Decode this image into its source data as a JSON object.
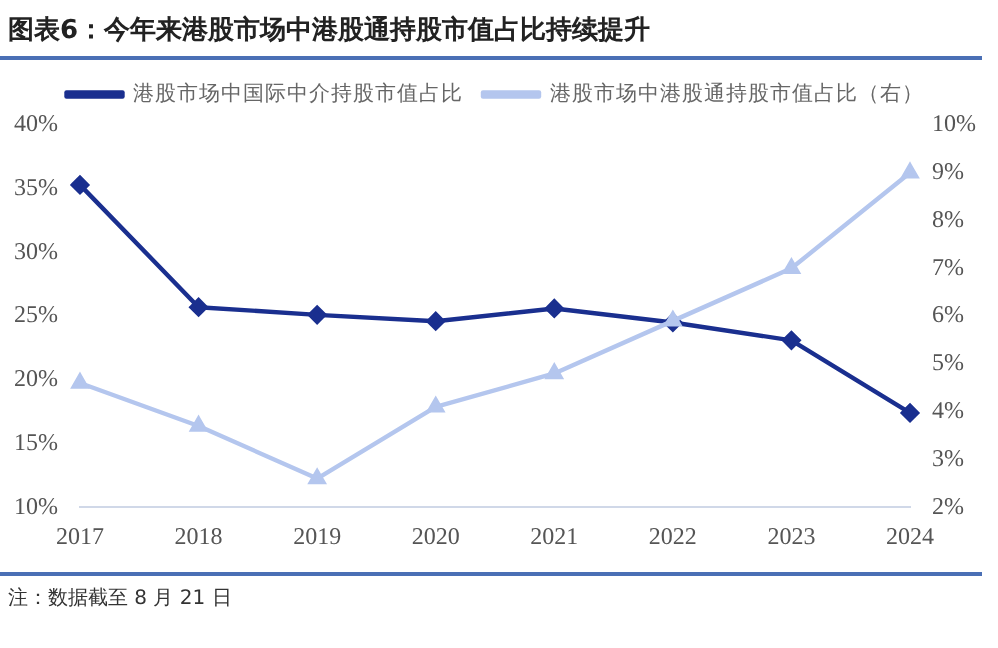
{
  "chart_data": {
    "type": "line",
    "title": "图表6：今年来港股市场中港股通持股市值占比持续提升",
    "categories": [
      "2017",
      "2018",
      "2019",
      "2020",
      "2021",
      "2022",
      "2023",
      "2024"
    ],
    "series": [
      {
        "name": "港股市场中国际中介持股市值占比",
        "color": "#1a2f8f",
        "marker": "diamond",
        "values": [
          35.3,
          25.7,
          25.1,
          24.6,
          25.6,
          24.5,
          23.1,
          17.4
        ]
      },
      {
        "name": "港股市场中港股通持股市值占比（右）",
        "color": "#b4c6ee",
        "marker": "triangle",
        "axis": "y2",
        "values": [
          4.6,
          3.7,
          2.6,
          4.1,
          4.8,
          5.9,
          7.0,
          9.0
        ]
      }
    ],
    "ylim": [
      10,
      40
    ],
    "yticks": [
      {
        "value": 10,
        "label": "10%"
      },
      {
        "value": 15,
        "label": "15%"
      },
      {
        "value": 20,
        "label": "20%"
      },
      {
        "value": 25,
        "label": "25%"
      },
      {
        "value": 30,
        "label": "30%"
      },
      {
        "value": 35,
        "label": "35%"
      },
      {
        "value": 40,
        "label": "40%"
      }
    ],
    "y2lim": [
      2,
      10
    ],
    "y2ticks": [
      {
        "value": 2,
        "label": "2%"
      },
      {
        "value": 3,
        "label": "3%"
      },
      {
        "value": 4,
        "label": "4%"
      },
      {
        "value": 5,
        "label": "5%"
      },
      {
        "value": 6,
        "label": "6%"
      },
      {
        "value": 7,
        "label": "7%"
      },
      {
        "value": 8,
        "label": "8%"
      },
      {
        "value": 9,
        "label": "9%"
      },
      {
        "value": 10,
        "label": "10%"
      }
    ],
    "grid": false,
    "legend": "top",
    "line_style": "solid",
    "annotations": [
      "注：数据截至 8 月 21 日"
    ]
  }
}
